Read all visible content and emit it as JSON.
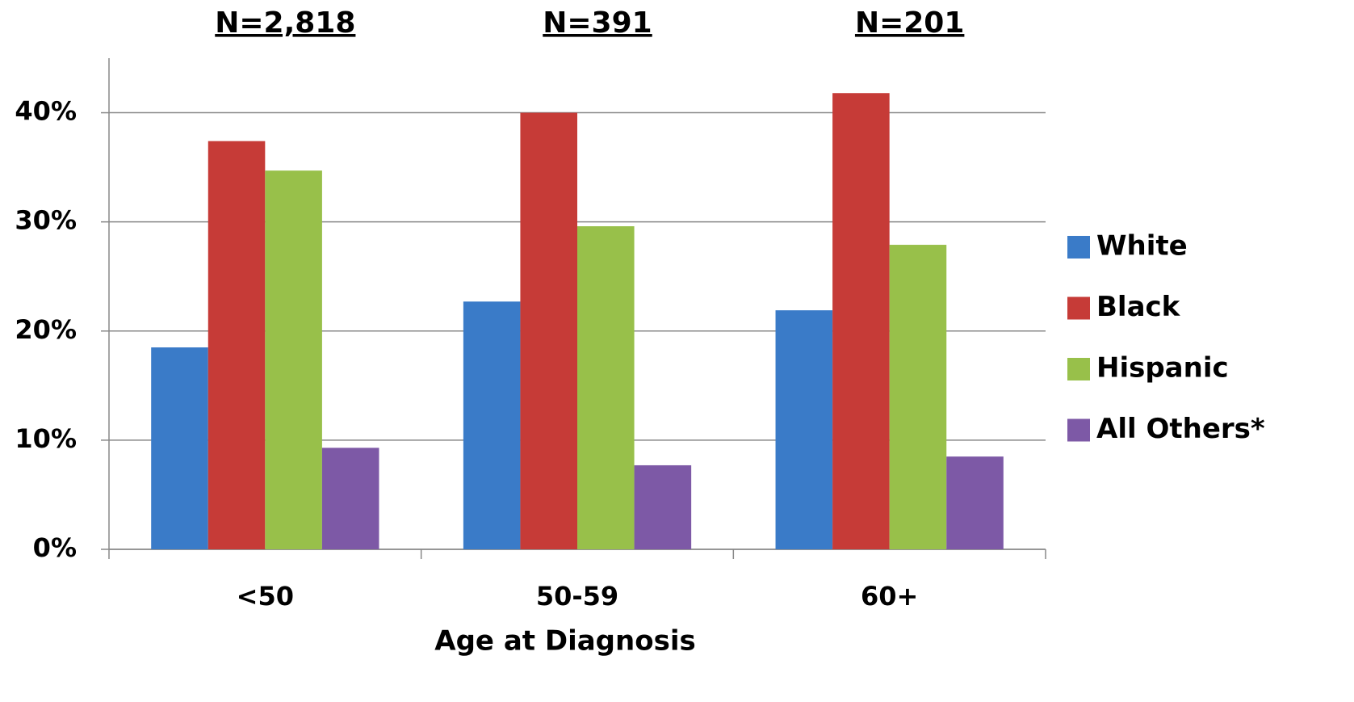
{
  "chart_data": {
    "type": "bar",
    "group_labels": [
      "N=2,818",
      "N=391",
      "N=201"
    ],
    "x_label": "Age at Diagnosis",
    "categories": [
      "<50",
      "50-59",
      "60+"
    ],
    "series": [
      {
        "name": "White",
        "color": "#3a7bc8",
        "values": [
          18.5,
          22.7,
          21.9
        ]
      },
      {
        "name": "Black",
        "color": "#c63b37",
        "values": [
          37.4,
          40.0,
          41.8
        ]
      },
      {
        "name": "Hispanic",
        "color": "#98c04a",
        "values": [
          34.7,
          29.6,
          27.9
        ]
      },
      {
        "name": "All Others*",
        "color": "#7d59a6",
        "values": [
          9.3,
          7.7,
          8.5
        ]
      }
    ],
    "ylim": [
      0,
      45
    ],
    "yticks": [
      {
        "value": 0,
        "label": "0%"
      },
      {
        "value": 10,
        "label": "10%"
      },
      {
        "value": 20,
        "label": "20%"
      },
      {
        "value": 30,
        "label": "30%"
      },
      {
        "value": 40,
        "label": "40%"
      }
    ],
    "grid": true,
    "legend": "right"
  }
}
